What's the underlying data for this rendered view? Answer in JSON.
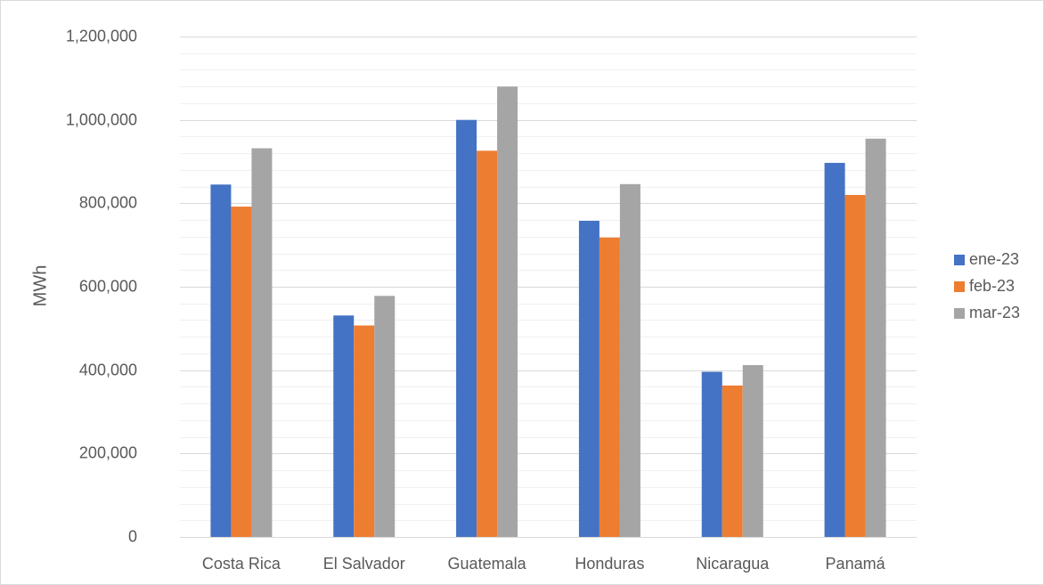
{
  "chart_data": {
    "type": "bar",
    "categories": [
      "Costa Rica",
      "El Salvador",
      "Guatemala",
      "Honduras",
      "Nicaragua",
      "Panamá"
    ],
    "series": [
      {
        "name": "ene-23",
        "color": "#4472c4",
        "values": [
          845000,
          531000,
          1000000,
          758000,
          396000,
          897000
        ]
      },
      {
        "name": "feb-23",
        "color": "#ed7d31",
        "values": [
          792000,
          507000,
          926000,
          718000,
          363000,
          820000
        ]
      },
      {
        "name": "mar-23",
        "color": "#a5a5a5",
        "values": [
          932000,
          578000,
          1080000,
          846000,
          412000,
          955000
        ]
      }
    ],
    "title": "",
    "xlabel": "",
    "ylabel": "MWh",
    "ylim": [
      0,
      1200000
    ],
    "y_ticks": [
      "0",
      "200,000",
      "400,000",
      "600,000",
      "800,000",
      "1,000,000",
      "1,200,000"
    ],
    "y_tick_values": [
      0,
      200000,
      400000,
      600000,
      800000,
      1000000,
      1200000
    ],
    "grid": true,
    "minor_grid": true,
    "legend_position": "right"
  }
}
